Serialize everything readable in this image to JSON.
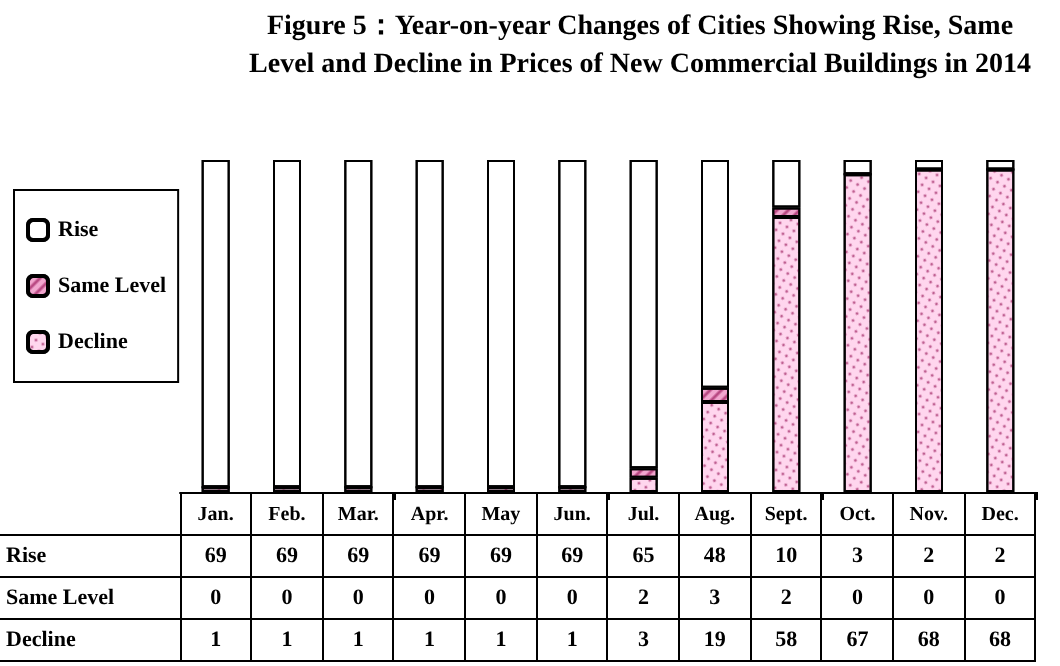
{
  "chart_data": {
    "type": "bar",
    "title": "Figure 5：Year-on-year Changes of Cities Showing Rise, Same Level and Decline in Prices of New Commercial Buildings in 2014",
    "categories": [
      "Jan.",
      "Feb.",
      "Mar.",
      "Apr.",
      "May",
      "Jun.",
      "Jul.",
      "Aug.",
      "Sept.",
      "Oct.",
      "Nov.",
      "Dec."
    ],
    "stacked": true,
    "data_labels": true,
    "legend": "left",
    "series": [
      {
        "name": "Decline",
        "color": "#ffd6ee",
        "values": [
          1,
          1,
          1,
          1,
          1,
          1,
          3,
          19,
          58,
          67,
          68,
          68
        ]
      },
      {
        "name": "Same Level",
        "color": "#f2a6cf",
        "values": [
          0,
          0,
          0,
          0,
          0,
          0,
          2,
          3,
          2,
          0,
          0,
          0
        ]
      },
      {
        "name": "Rise",
        "color": "#ffffff",
        "values": [
          69,
          69,
          69,
          69,
          69,
          69,
          65,
          48,
          10,
          3,
          2,
          2
        ]
      }
    ]
  }
}
